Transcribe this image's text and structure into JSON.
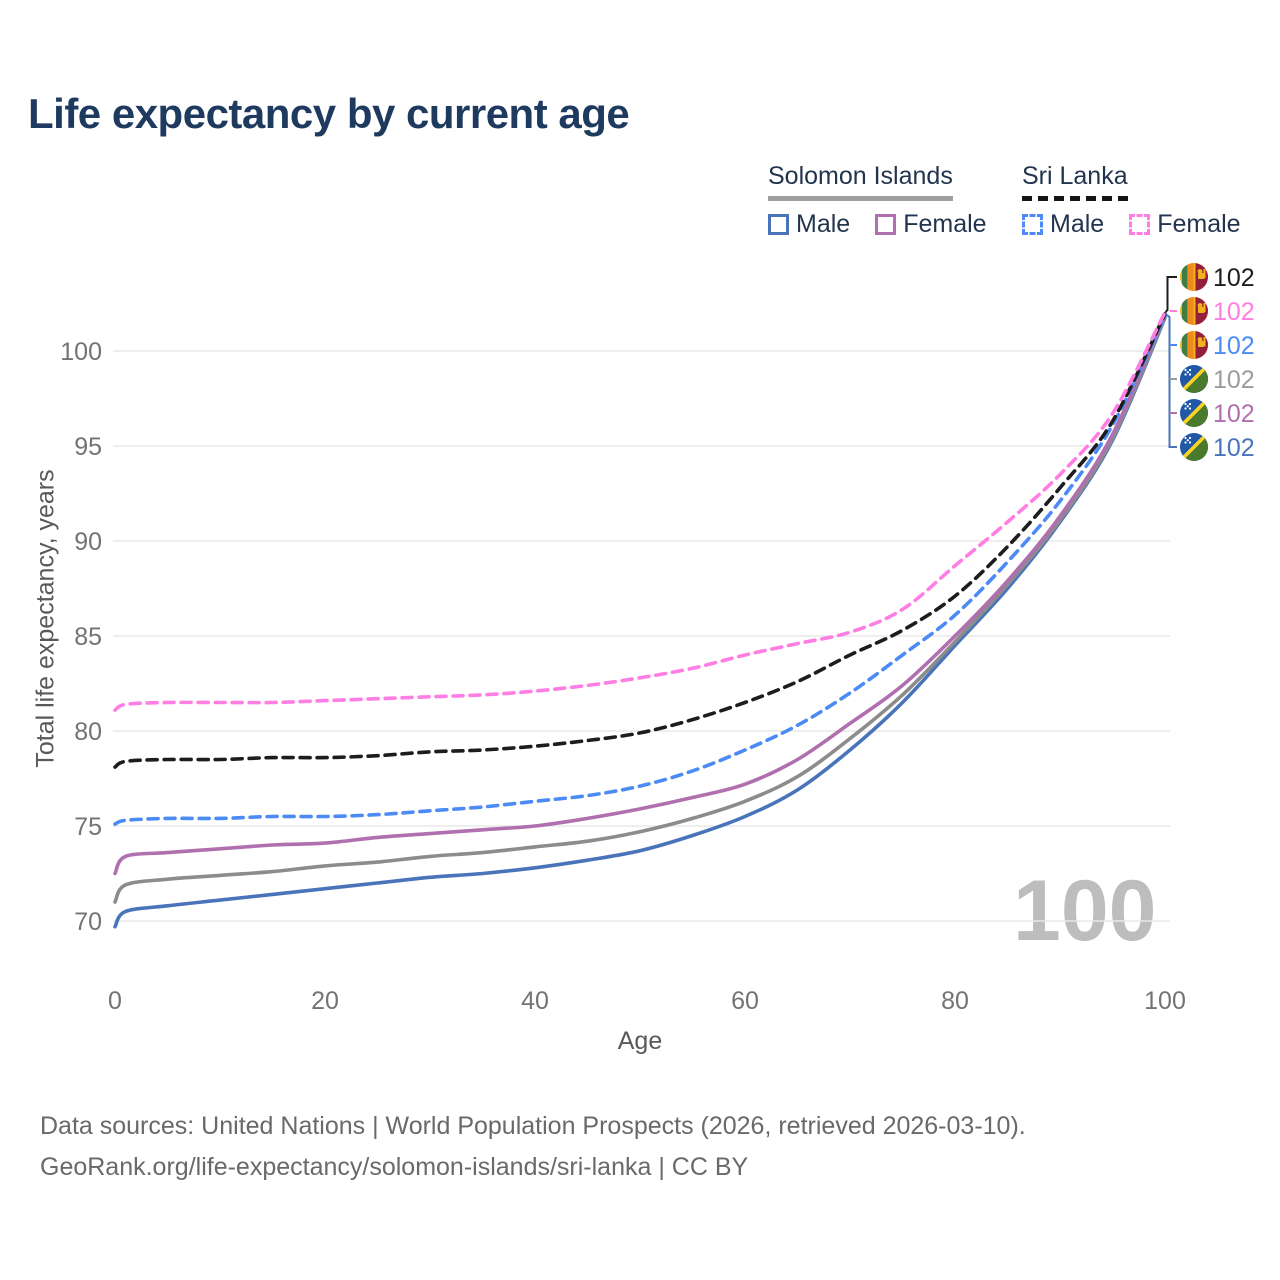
{
  "title": "Life expectancy by current age",
  "watermark": "100",
  "legend": {
    "groups": [
      {
        "country": "Solomon Islands",
        "line_style": "solid",
        "rule_color": "#9e9e9e",
        "entries": [
          {
            "label": "Male",
            "color": "#4a74ba",
            "swatch": "solid"
          },
          {
            "label": "Female",
            "color": "#b06fae",
            "swatch": "solid"
          }
        ]
      },
      {
        "country": "Sri Lanka",
        "line_style": "dashed",
        "rule_color": "#161616",
        "entries": [
          {
            "label": "Male",
            "color": "#4c8bf5",
            "swatch": "dashed"
          },
          {
            "label": "Female",
            "color": "#ff7ee3",
            "swatch": "dashed"
          }
        ]
      }
    ]
  },
  "footer": {
    "line1": "Data sources: United Nations | World Population Prospects (2026, retrieved 2026-03-10).",
    "line2": "GeoRank.org/life-expectancy/solomon-islands/sri-lanka | CC BY"
  },
  "palette": {
    "grid": "#e8e8e8",
    "tick_label": "#737373",
    "axis_title": "#595959",
    "title_text": "#1e3a5f",
    "footer_text": "#696969",
    "watermark_text": "#bdbdbd"
  },
  "end_labels": [
    {
      "flag": "sri-lanka-flag-icon",
      "value": "102",
      "color": "#1d1d1d"
    },
    {
      "flag": "sri-lanka-flag-icon",
      "value": "102",
      "color": "#ff7ee3"
    },
    {
      "flag": "sri-lanka-flag-icon",
      "value": "102",
      "color": "#4c8bf5"
    },
    {
      "flag": "solomon-islands-flag-icon",
      "value": "102",
      "color": "#9b9b9b"
    },
    {
      "flag": "solomon-islands-flag-icon",
      "value": "102",
      "color": "#b06fae"
    },
    {
      "flag": "solomon-islands-flag-icon",
      "value": "102",
      "color": "#4a74ba"
    }
  ],
  "chart_data": {
    "type": "line",
    "title": "Life expectancy by current age",
    "xlabel": "Age",
    "ylabel": "Total life expectancy, years",
    "x": [
      0,
      1,
      5,
      10,
      15,
      20,
      25,
      30,
      35,
      40,
      45,
      50,
      55,
      60,
      65,
      70,
      75,
      80,
      85,
      90,
      95,
      100
    ],
    "xticks": [
      0,
      20,
      40,
      60,
      80,
      100
    ],
    "yticks": [
      70,
      75,
      80,
      85,
      90,
      95,
      100
    ],
    "xlim": [
      0,
      100
    ],
    "ylim": [
      69,
      103
    ],
    "grid": "horizontal",
    "legend_position": "top-right",
    "series": [
      {
        "name": "Solomon Islands Male",
        "country": "Solomon Islands",
        "sex": "Male",
        "style": "solid",
        "color": "#4a74ba",
        "end_label": "102",
        "values": [
          69.7,
          70.5,
          70.8,
          71.1,
          71.4,
          71.7,
          72.0,
          72.3,
          72.5,
          72.8,
          73.2,
          73.7,
          74.5,
          75.5,
          76.9,
          79.0,
          81.5,
          84.5,
          87.5,
          91.0,
          95.3,
          101.75
        ]
      },
      {
        "name": "Solomon Islands Total",
        "country": "Solomon Islands",
        "sex": "Total",
        "style": "solid",
        "color": "#8c8c8c",
        "end_label": "102",
        "values": [
          71.0,
          71.9,
          72.2,
          72.4,
          72.6,
          72.9,
          73.1,
          73.4,
          73.6,
          73.9,
          74.2,
          74.7,
          75.4,
          76.3,
          77.6,
          79.6,
          81.9,
          84.7,
          87.7,
          91.1,
          95.4,
          101.8
        ]
      },
      {
        "name": "Solomon Islands Female",
        "country": "Solomon Islands",
        "sex": "Female",
        "style": "solid",
        "color": "#b06fae",
        "end_label": "102",
        "values": [
          72.5,
          73.4,
          73.6,
          73.8,
          74.0,
          74.1,
          74.4,
          74.6,
          74.8,
          75.0,
          75.4,
          75.9,
          76.5,
          77.2,
          78.5,
          80.4,
          82.4,
          85.0,
          87.9,
          91.3,
          95.6,
          101.9
        ]
      },
      {
        "name": "Sri Lanka Male",
        "country": "Sri Lanka",
        "sex": "Male",
        "style": "dashed",
        "color": "#4c8bf5",
        "end_label": "102",
        "values": [
          75.1,
          75.3,
          75.4,
          75.4,
          75.5,
          75.5,
          75.6,
          75.8,
          76.0,
          76.3,
          76.6,
          77.1,
          77.9,
          79.0,
          80.3,
          82.0,
          84.0,
          86.1,
          88.9,
          92.1,
          96.1,
          101.85
        ]
      },
      {
        "name": "Sri Lanka Total",
        "country": "Sri Lanka",
        "sex": "Total",
        "style": "dashed",
        "color": "#1d1d1d",
        "end_label": "102",
        "values": [
          78.1,
          78.4,
          78.5,
          78.5,
          78.6,
          78.6,
          78.7,
          78.9,
          79.0,
          79.2,
          79.5,
          79.9,
          80.6,
          81.5,
          82.6,
          84.0,
          85.3,
          87.1,
          89.7,
          92.8,
          96.3,
          101.95
        ]
      },
      {
        "name": "Sri Lanka Female",
        "country": "Sri Lanka",
        "sex": "Female",
        "style": "dashed",
        "color": "#ff7ee3",
        "end_label": "102",
        "values": [
          81.1,
          81.4,
          81.5,
          81.5,
          81.5,
          81.6,
          81.7,
          81.8,
          81.9,
          82.1,
          82.4,
          82.8,
          83.3,
          84.0,
          84.6,
          85.2,
          86.4,
          88.7,
          91.0,
          93.5,
          96.7,
          102.05
        ]
      }
    ]
  }
}
